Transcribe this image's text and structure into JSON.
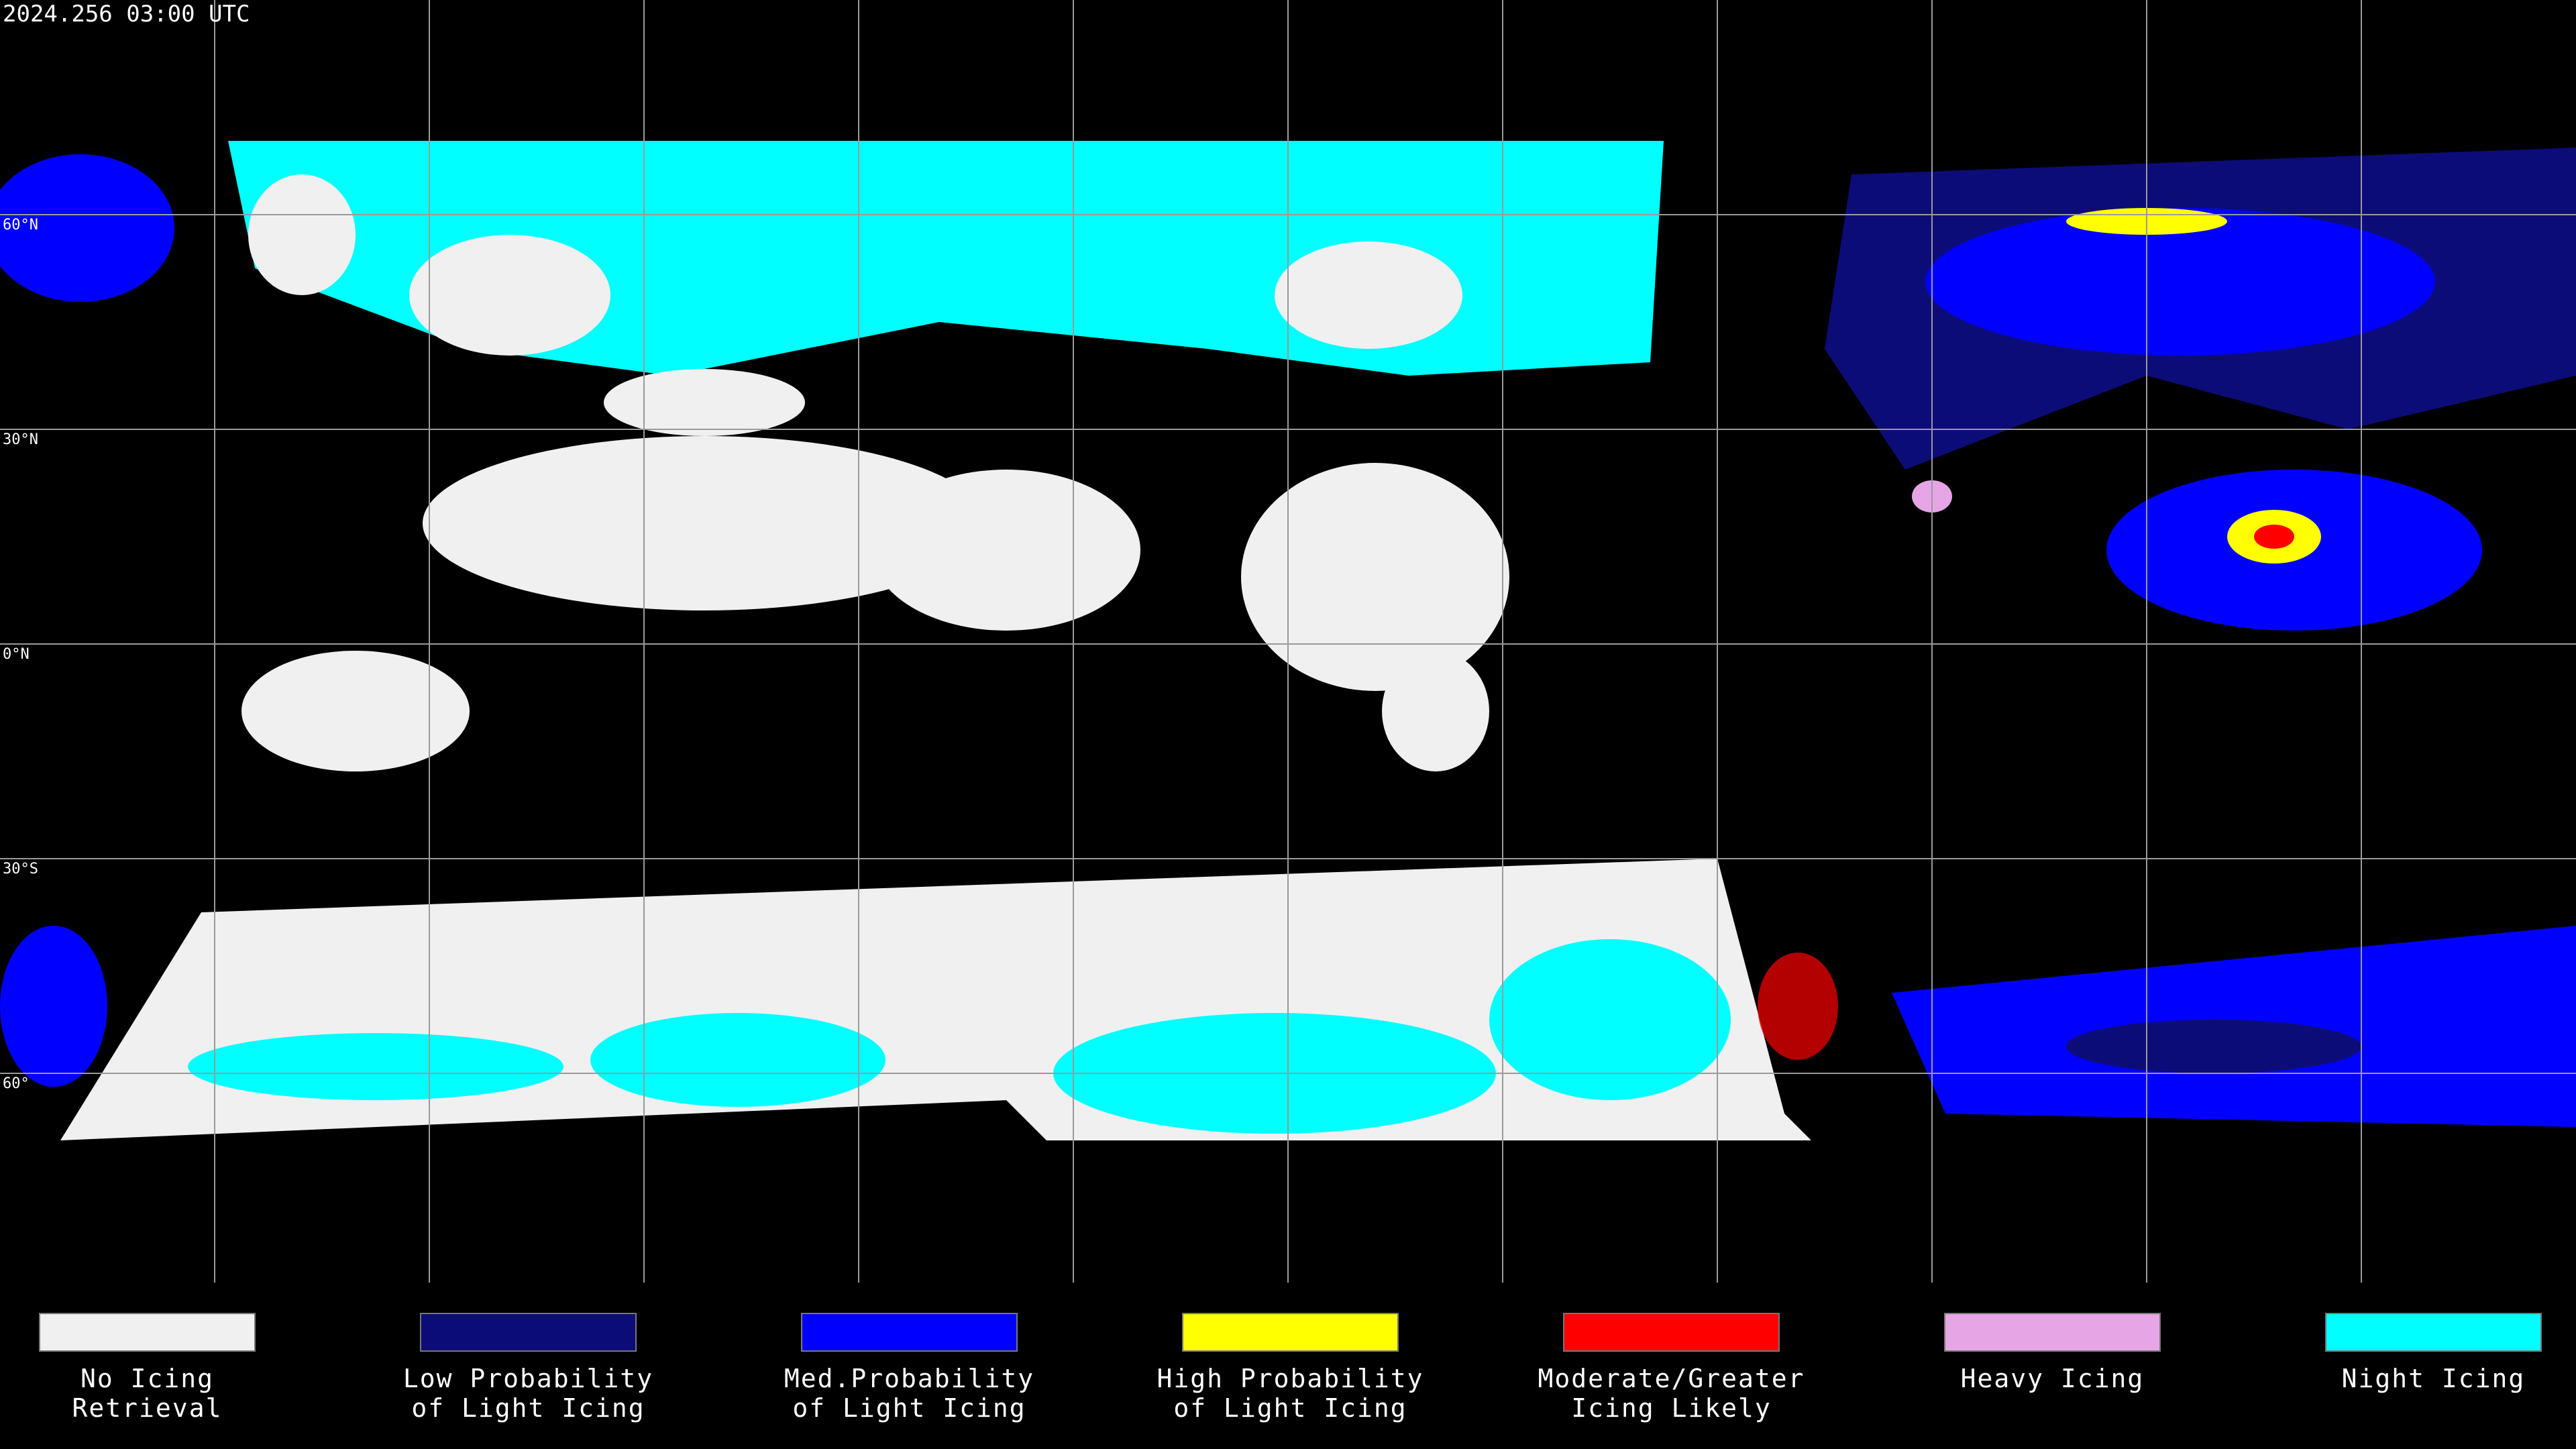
{
  "timestamp": "2024.256 03:00 UTC",
  "lat_labels": [
    "60°N",
    "30°N",
    "0°N",
    "30°S",
    "60°"
  ],
  "legend": [
    {
      "label": [
        "No Icing",
        "Retrieval"
      ],
      "color": "#f0f0f0"
    },
    {
      "label": [
        "Low Probability",
        "of Light Icing"
      ],
      "color": "#0c0c78"
    },
    {
      "label": [
        "Med.Probability",
        "of Light Icing"
      ],
      "color": "#0000ff"
    },
    {
      "label": [
        "High Probability",
        "of Light Icing"
      ],
      "color": "#ffff00"
    },
    {
      "label": [
        "Moderate/Greater",
        "Icing Likely"
      ],
      "color": "#ff0000"
    },
    {
      "label": [
        "Heavy Icing"
      ],
      "color": "#e6a6e6"
    },
    {
      "label": [
        "Night Icing"
      ],
      "color": "#00ffff"
    }
  ]
}
